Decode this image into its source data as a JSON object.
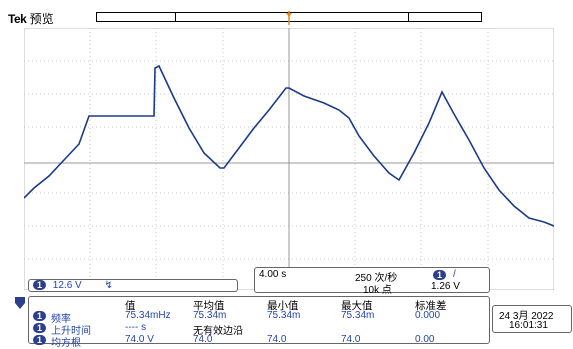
{
  "header": {
    "brand": "Tek",
    "mode": "预览"
  },
  "waveform": {
    "color": "#1a3a8a",
    "points_desc": "captured trace"
  },
  "channel_status": {
    "channel": "1",
    "volts_per_div": "12.6 V",
    "bandwidth_icon": "bw-limit-icon"
  },
  "horizontal": {
    "time_per_div": "4.00 s",
    "sample_rate": "250 次/秒",
    "record_length": "10k 点",
    "trigger_channel": "1",
    "trigger_slope": "/",
    "trigger_level": "1.26 V"
  },
  "measurements": {
    "headers": [
      "值",
      "平均值",
      "最小值",
      "最大值",
      "标准差"
    ],
    "rows": [
      {
        "channel": "1",
        "name": "频率",
        "value": "75.34mHz",
        "mean": "75.34m",
        "min": "75.34m",
        "max": "75.34m",
        "std": "0.000"
      },
      {
        "channel": "1",
        "name": "上升时间",
        "value": "---- s",
        "note": "无有效边沿"
      },
      {
        "channel": "1",
        "name": "均方根",
        "value": "74.0 V",
        "mean": "74.0",
        "min": "74.0",
        "max": "74.0",
        "std": "0.00"
      }
    ]
  },
  "datetime": {
    "date": "24 3月 2022",
    "time": "16:01:31"
  }
}
